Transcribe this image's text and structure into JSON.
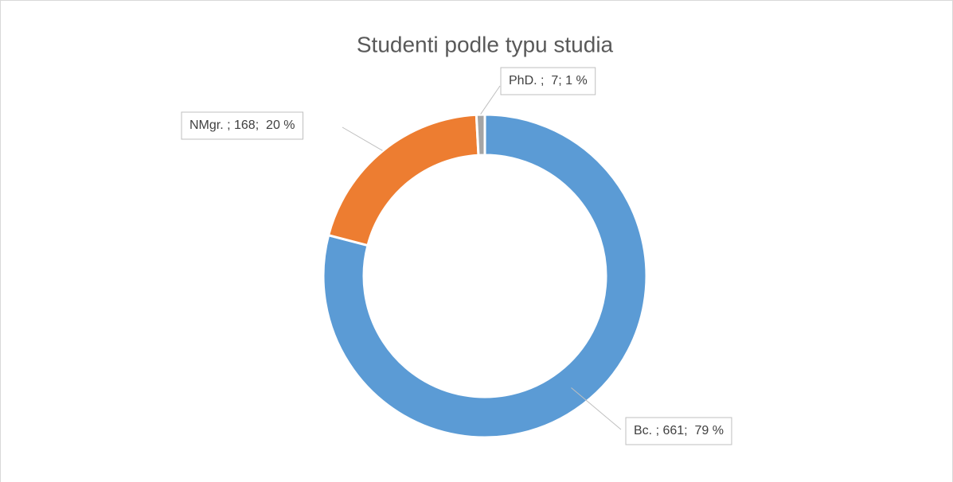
{
  "chart_data": {
    "type": "donut",
    "title": "Studenti podle typu studia",
    "categories": [
      "Bc.",
      "NMgr.",
      "PhD."
    ],
    "values": [
      661,
      168,
      7
    ],
    "value_labels": [
      "Bc. ; 661;  79 %",
      "NMgr. ; 168;  20 %",
      "PhD. ;  7; 1 %"
    ],
    "colors": [
      "#5b9bd5",
      "#ed7d31",
      "#a5a5a5"
    ]
  }
}
